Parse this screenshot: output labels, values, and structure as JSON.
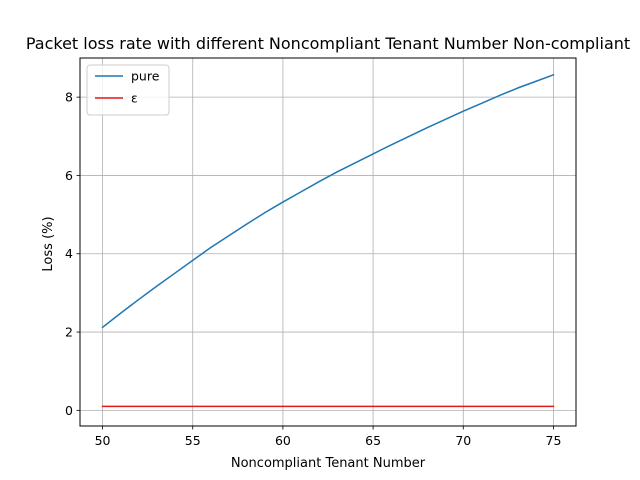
{
  "chart_data": {
    "type": "line",
    "title": "Packet loss rate with different Noncompliant Tenant Number Non-compliant",
    "xlabel": "Noncompliant Tenant Number",
    "ylabel": "Loss (%)",
    "xlim": [
      48.75,
      76.25
    ],
    "ylim": [
      -0.4,
      9.0
    ],
    "xticks": [
      50,
      55,
      60,
      65,
      70,
      75
    ],
    "yticks": [
      0,
      2,
      4,
      6,
      8
    ],
    "grid": true,
    "legend_position": "top-left",
    "x": [
      50,
      51,
      52,
      53,
      54,
      55,
      56,
      57,
      58,
      59,
      60,
      61,
      62,
      63,
      64,
      65,
      66,
      67,
      68,
      69,
      70,
      71,
      72,
      73,
      74,
      75
    ],
    "series": [
      {
        "name": "pure",
        "color": "#1f77b4",
        "values": [
          2.12,
          2.48,
          2.83,
          3.17,
          3.5,
          3.83,
          4.16,
          4.46,
          4.76,
          5.05,
          5.32,
          5.58,
          5.84,
          6.09,
          6.32,
          6.55,
          6.78,
          7.0,
          7.22,
          7.43,
          7.64,
          7.84,
          8.04,
          8.23,
          8.4,
          8.57
        ]
      },
      {
        "name": "ε",
        "color": "#e31a1c",
        "values": [
          0.1,
          0.1,
          0.1,
          0.1,
          0.1,
          0.1,
          0.1,
          0.1,
          0.1,
          0.1,
          0.1,
          0.1,
          0.1,
          0.1,
          0.1,
          0.1,
          0.1,
          0.1,
          0.1,
          0.1,
          0.1,
          0.1,
          0.1,
          0.1,
          0.1,
          0.1
        ]
      }
    ]
  }
}
